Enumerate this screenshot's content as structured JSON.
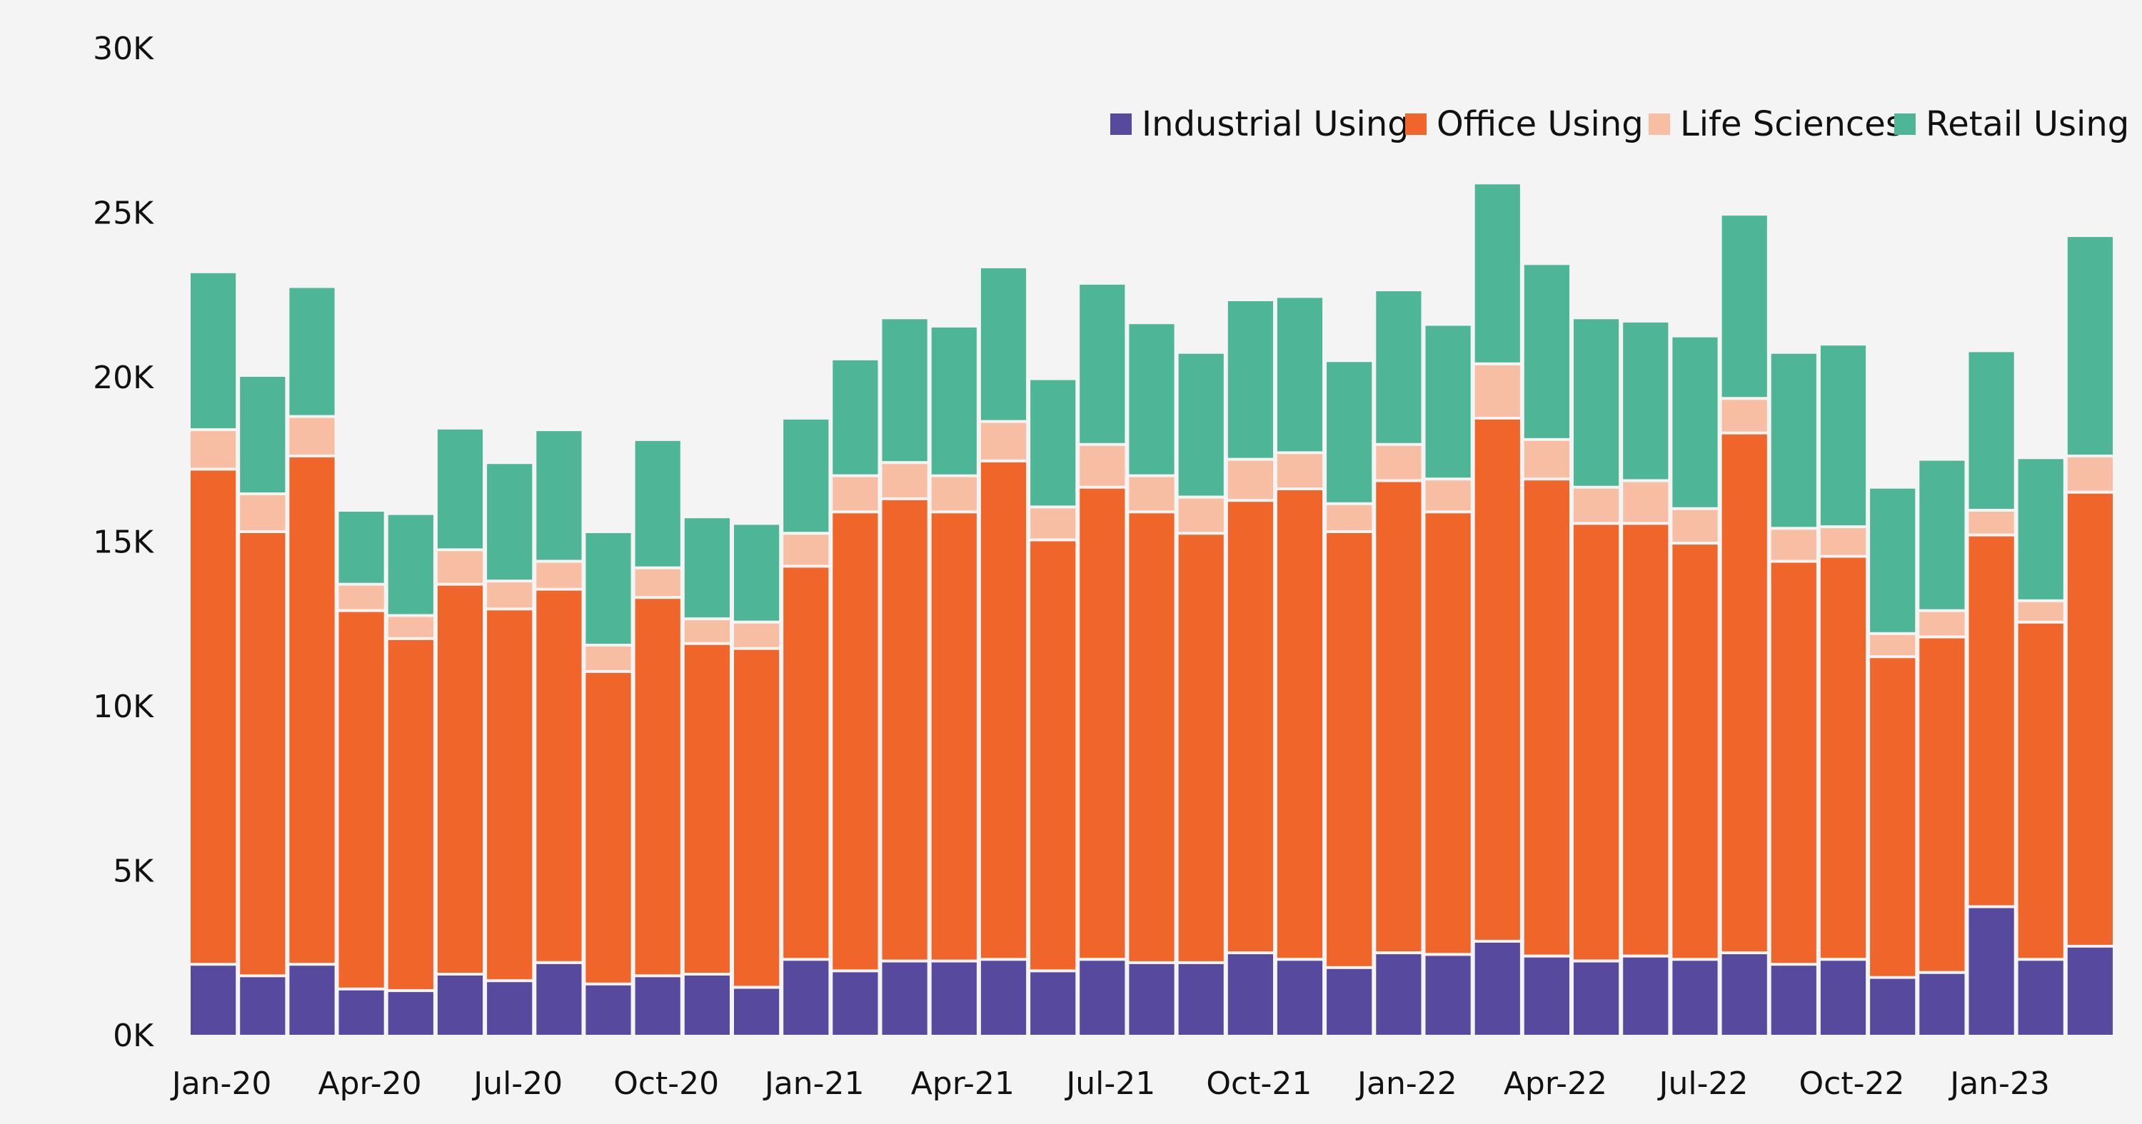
{
  "chart_data": {
    "type": "bar",
    "stacked": true,
    "categories": [
      "Jan-20",
      "Feb-20",
      "Mar-20",
      "Apr-20",
      "May-20",
      "Jun-20",
      "Jul-20",
      "Aug-20",
      "Sep-20",
      "Oct-20",
      "Nov-20",
      "Dec-20",
      "Jan-21",
      "Feb-21",
      "Mar-21",
      "Apr-21",
      "May-21",
      "Jun-21",
      "Jul-21",
      "Aug-21",
      "Sep-21",
      "Oct-21",
      "Nov-21",
      "Dec-21",
      "Jan-22",
      "Feb-22",
      "Mar-22",
      "Apr-22",
      "May-22",
      "Jun-22",
      "Jul-22",
      "Aug-22",
      "Sep-22",
      "Oct-22",
      "Nov-22",
      "Dec-22",
      "Jan-23",
      "Feb-23",
      "Mar-23"
    ],
    "x_tick_labels": [
      "Jan-20",
      "Apr-20",
      "Jul-20",
      "Oct-20",
      "Jan-21",
      "Apr-21",
      "Jul-21",
      "Oct-21",
      "Jan-22",
      "Apr-22",
      "Jul-22",
      "Oct-22",
      "Jan-23"
    ],
    "y_ticks": [
      0,
      5000,
      10000,
      15000,
      20000,
      25000,
      30000
    ],
    "y_tick_labels": [
      "0K",
      "5K",
      "10K",
      "15K",
      "20K",
      "25K",
      "30K"
    ],
    "ylim": [
      0,
      30000
    ],
    "grid": false,
    "legend": {
      "placement": "top-right"
    },
    "series": [
      {
        "name": "Industrial Using",
        "color": "#574a9e",
        "values": [
          2100,
          1750,
          2100,
          1350,
          1300,
          1800,
          1600,
          2150,
          1500,
          1750,
          1800,
          1400,
          2250,
          1900,
          2200,
          2200,
          2250,
          1900,
          2250,
          2150,
          2150,
          2450,
          2250,
          2000,
          2450,
          2400,
          2800,
          2350,
          2200,
          2350,
          2250,
          2450,
          2100,
          2250,
          1700,
          1850,
          3850,
          2250,
          2650
        ]
      },
      {
        "name": "Office Using",
        "color": "#ef652a",
        "values": [
          15050,
          13500,
          15450,
          11500,
          10700,
          11850,
          11300,
          11350,
          9500,
          11500,
          10050,
          10300,
          11950,
          13950,
          14050,
          13650,
          15150,
          13100,
          14350,
          13700,
          13050,
          13750,
          14300,
          13250,
          14350,
          13450,
          15900,
          14500,
          13300,
          13150,
          12650,
          15800,
          12250,
          12250,
          9750,
          10200,
          11300,
          10250,
          13800
        ]
      },
      {
        "name": "Life Sciences",
        "color": "#f7bea3",
        "values": [
          1200,
          1150,
          1200,
          800,
          700,
          1050,
          850,
          850,
          800,
          900,
          750,
          800,
          1000,
          1100,
          1100,
          1100,
          1200,
          1000,
          1300,
          1100,
          1100,
          1250,
          1100,
          850,
          1100,
          1000,
          1650,
          1200,
          1100,
          1300,
          1050,
          1050,
          1000,
          900,
          700,
          800,
          750,
          650,
          1100
        ]
      },
      {
        "name": "Retail Using",
        "color": "#4eb696",
        "values": [
          4800,
          3600,
          3950,
          2250,
          3100,
          3700,
          3600,
          4000,
          3450,
          3900,
          3100,
          3000,
          3500,
          3550,
          4400,
          4550,
          4700,
          3900,
          4900,
          4650,
          4400,
          4850,
          4750,
          4350,
          4700,
          4700,
          5500,
          5350,
          5150,
          4850,
          5250,
          5600,
          5350,
          5550,
          4450,
          4600,
          4850,
          4350,
          6700
        ]
      }
    ]
  }
}
